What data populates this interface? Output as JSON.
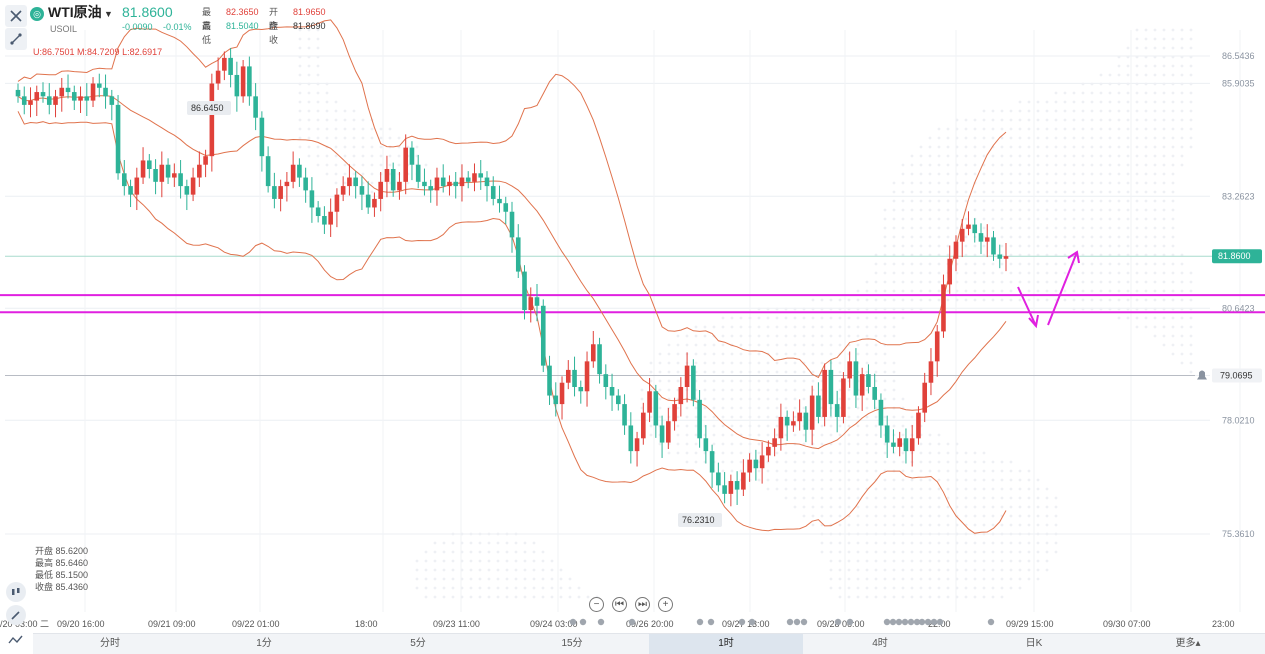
{
  "header": {
    "symbol_logo": "◎",
    "symbol_name": "WTI原油",
    "symbol_code": "USOIL",
    "last_price": "81.8600",
    "change": "-0.0090",
    "change_pct": "-0.01%",
    "high_label": "最高",
    "high_value": "82.3650",
    "open_label": "开盘",
    "open_value": "81.9650",
    "low_label": "最低",
    "low_value": "81.5040",
    "prev_close_label": "昨收",
    "prev_close_value": "81.8690",
    "caret_icon": "caret-down-icon"
  },
  "boll_line": "U:86.7501  M:84.7209  L:82.6917",
  "info_box": {
    "open": "开盘 85.6200",
    "high": "最高 85.6460",
    "low": "最低 85.1500",
    "close": "收盘 85.4360"
  },
  "tabs": [
    {
      "label": "分时",
      "active": false
    },
    {
      "label": "1分",
      "active": false
    },
    {
      "label": "5分",
      "active": false
    },
    {
      "label": "15分",
      "active": false
    },
    {
      "label": "1时",
      "active": true
    },
    {
      "label": "4时",
      "active": false
    },
    {
      "label": "日K",
      "active": false
    },
    {
      "label": "更多▴",
      "active": false
    }
  ],
  "nav_buttons": [
    "−",
    "⏮",
    "⏭",
    "+"
  ],
  "colors": {
    "up": "#e0413a",
    "down": "#2eb398",
    "boll": "#e0734d",
    "magenta": "#e020e0",
    "current_price_tag": "#2eb398"
  },
  "chart_data": {
    "type": "candlestick",
    "yaxis": {
      "ticks": [
        "86.5436",
        "85.9035",
        "83.2623",
        "80.6423",
        "79.0695",
        "78.0210",
        "75.3610"
      ],
      "range": [
        75.0,
        88.6
      ]
    },
    "xaxis": {
      "ticks": [
        "/20 03:00 二",
        "09/20 16:00",
        "09/21 09:00",
        "09/22 01:00",
        "18:00",
        "09/23 11:00",
        "09/24 03:00",
        "09/26 20:00",
        "09/27 13:00",
        "09/28 06:00",
        "22:00",
        "09/29 15:00",
        "09/30 07:00",
        "23:00"
      ]
    },
    "annotations": {
      "high_label": "86.6450",
      "low_label": "76.2310",
      "current_price": "81.8600",
      "alert_price": "79.0695"
    },
    "support_lines": [
      80.95,
      80.55
    ],
    "candles_close": [
      85.6,
      85.4,
      85.5,
      85.7,
      85.6,
      85.4,
      85.6,
      85.8,
      85.7,
      85.5,
      85.6,
      85.5,
      85.9,
      85.8,
      85.6,
      85.4,
      83.8,
      83.5,
      83.3,
      83.7,
      84.1,
      83.9,
      83.6,
      84.0,
      83.7,
      83.8,
      83.5,
      83.3,
      83.7,
      84.0,
      84.2,
      85.9,
      86.2,
      86.5,
      86.1,
      85.6,
      86.3,
      85.6,
      85.1,
      84.2,
      83.5,
      83.2,
      83.5,
      83.6,
      84.0,
      83.7,
      83.4,
      83.0,
      82.8,
      82.6,
      82.9,
      83.3,
      83.5,
      83.7,
      83.5,
      83.3,
      83.0,
      83.2,
      83.6,
      83.9,
      83.4,
      83.6,
      84.4,
      84.0,
      83.6,
      83.5,
      83.4,
      83.7,
      83.5,
      83.6,
      83.5,
      83.7,
      83.6,
      83.8,
      83.7,
      83.5,
      83.2,
      83.1,
      82.9,
      82.3,
      81.5,
      80.6,
      80.9,
      80.7,
      79.3,
      78.6,
      78.4,
      78.9,
      79.2,
      78.8,
      78.7,
      79.4,
      79.8,
      79.1,
      78.8,
      78.6,
      78.4,
      77.9,
      77.3,
      77.6,
      78.2,
      78.7,
      77.9,
      77.5,
      78.0,
      78.4,
      78.8,
      79.3,
      78.5,
      77.6,
      77.3,
      76.8,
      76.5,
      76.3,
      76.6,
      76.4,
      76.8,
      77.1,
      76.9,
      77.2,
      77.4,
      77.6,
      78.1,
      77.9,
      78.0,
      78.2,
      77.8,
      78.6,
      78.1,
      79.2,
      78.4,
      78.1,
      79.0,
      79.4,
      78.6,
      79.1,
      78.8,
      78.5,
      77.9,
      77.5,
      77.4,
      77.6,
      77.3,
      77.6,
      78.2,
      78.9,
      79.4,
      80.1,
      81.2,
      81.8,
      82.2,
      82.5,
      82.6,
      82.4,
      82.2,
      82.3,
      81.9,
      81.8,
      81.86
    ]
  },
  "icons": {
    "close": "close-icon",
    "draw": "draw-tool-icon",
    "alert": "bell-icon",
    "candle_type": "candle-type-icon",
    "pencil": "pencil-icon",
    "indicator": "indicator-icon"
  }
}
